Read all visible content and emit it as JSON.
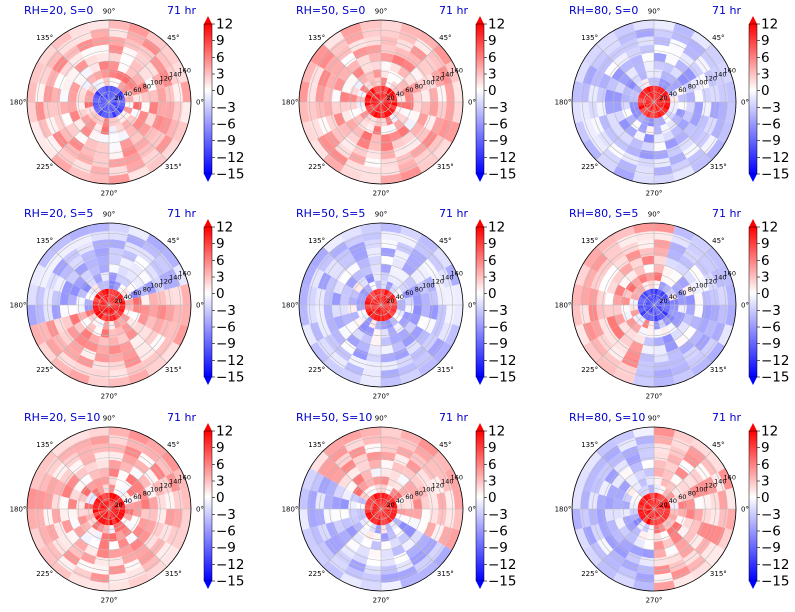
{
  "chart_data": {
    "type": "heatmap",
    "projection": "polar",
    "layout": "3x3 grid",
    "colormap": "bwr",
    "value_range": [
      -15,
      12
    ],
    "angle_ticks": [
      "90°",
      "45°",
      "0°",
      "315°",
      "270°",
      "225°",
      "180°",
      "135°"
    ],
    "radial_ticks": [
      "20",
      "40",
      "60",
      "80",
      "100",
      "120",
      "140",
      "160"
    ],
    "colorbar_ticks": [
      "12",
      "9",
      "6",
      "3",
      "0",
      "−3",
      "−6",
      "−9",
      "−12",
      "−15"
    ],
    "panels": [
      {
        "title": "RH=20, S=0",
        "time": "71 hr",
        "center": "negative",
        "ring": "positive"
      },
      {
        "title": "RH=50, S=0",
        "time": "71 hr",
        "center": "positive",
        "ring": "positive"
      },
      {
        "title": "RH=80, S=0",
        "time": "71 hr",
        "center": "positive",
        "ring": "negative"
      },
      {
        "title": "RH=20, S=5",
        "time": "71 hr",
        "center": "positive",
        "ring": "mixed"
      },
      {
        "title": "RH=50, S=5",
        "time": "71 hr",
        "center": "positive",
        "ring": "negative"
      },
      {
        "title": "RH=80, S=5",
        "time": "71 hr",
        "center": "negative",
        "ring": "mixed"
      },
      {
        "title": "RH=20, S=10",
        "time": "71 hr",
        "center": "positive",
        "ring": "positive"
      },
      {
        "title": "RH=50, S=10",
        "time": "71 hr",
        "center": "positive",
        "ring": "mixed"
      },
      {
        "title": "RH=80, S=10",
        "time": "71 hr",
        "center": "positive",
        "ring": "mixed"
      }
    ]
  }
}
